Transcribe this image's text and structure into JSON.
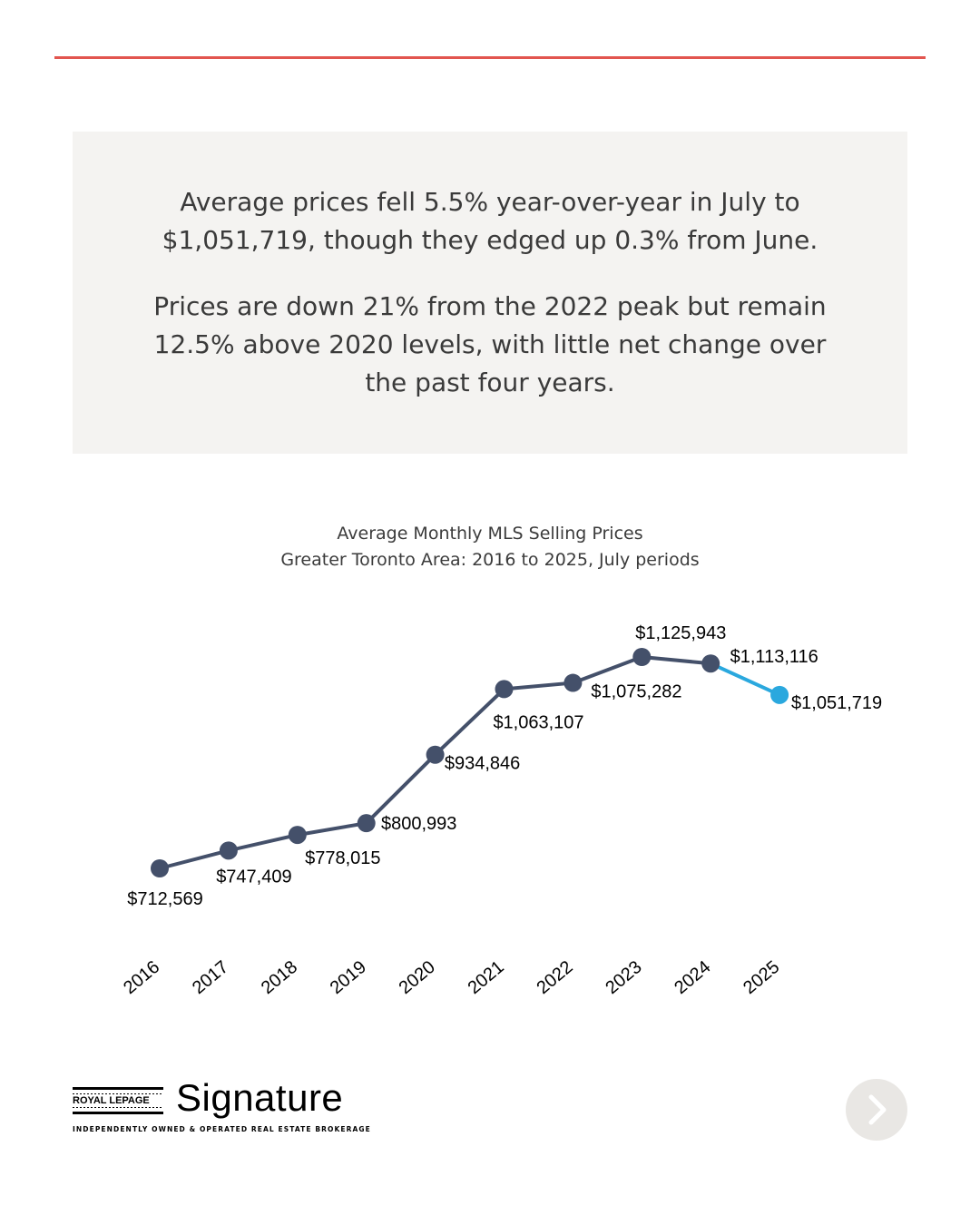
{
  "summary": {
    "paragraph_1": "Average prices fell 5.5% year-over-year in July to $1,051,719, though they edged up 0.3% from June.",
    "paragraph_2": "Prices are down 21% from the 2022 peak but remain 12.5% above 2020 levels, with little net change over the past four years."
  },
  "chart_data": {
    "type": "line",
    "title": "Average Monthly MLS Selling Prices",
    "subtitle": "Greater Toronto Area: 2016 to 2025, July periods",
    "categories": [
      "2016",
      "2017",
      "2018",
      "2019",
      "2020",
      "2021",
      "2022",
      "2023",
      "2024",
      "2025"
    ],
    "values": [
      712569,
      747409,
      778015,
      800993,
      934846,
      1063107,
      1075282,
      1125943,
      1113116,
      1051719
    ],
    "data_labels": [
      "$712,569",
      "$747,409",
      "$778,015",
      "$800,993",
      "$934,846",
      "$1,063,107",
      "$1,075,282",
      "$1,125,943",
      "$1,113,116",
      "$1,051,719"
    ],
    "colors": {
      "main": "#44506a",
      "highlight": "#2aa8de"
    },
    "highlight_index": 9,
    "xlabel": "",
    "ylabel": "",
    "grid": false
  },
  "branding": {
    "brand_name": "ROYAL LEPAGE",
    "brand_sub": "Signature",
    "tagline": "INDEPENDENTLY OWNED & OPERATED REAL ESTATE BROKERAGE"
  },
  "navigation": {
    "next_icon": "chevron-right-icon"
  },
  "colors": {
    "accent_rule": "#e2554f",
    "box_background": "#f4f3f1"
  }
}
